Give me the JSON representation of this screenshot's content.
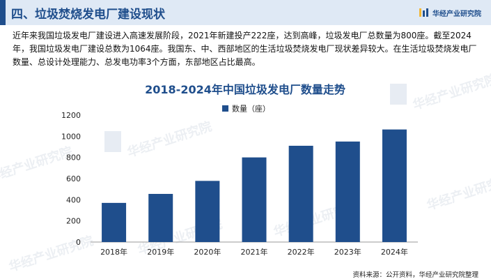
{
  "header": {
    "title": "四、垃圾焚烧发电厂建设现状",
    "brand": "华经产业研究院"
  },
  "intro": "近年来我国垃圾发电厂建设进入高速发展阶段，2021年新建投产222座，达到高峰，垃圾发电厂总数量为800座。截至2024年，我国垃圾发电厂建设总数为1064座。我国东、中、西部地区的生活垃圾焚烧发电厂现状差异较大。在生活垃圾焚烧发电厂数量、总设计处理能力、总发电功率3个方面，东部地区占比最高。",
  "watermark_text": "华经产业研究院",
  "colors": {
    "accent": "#1f4e8c",
    "bar": "#1f4e8c",
    "header_bg": "#dfe9f5"
  },
  "chart_data": {
    "type": "bar",
    "title": "2018-2024年中国垃圾发电厂数量走势",
    "categories": [
      "2018年",
      "2019年",
      "2020年",
      "2021年",
      "2022年",
      "2023年",
      "2024年"
    ],
    "series": [
      {
        "name": "数量（座）",
        "values": [
          370,
          455,
          578,
          800,
          910,
          950,
          1064
        ]
      }
    ],
    "ylim": [
      0,
      1200
    ],
    "yticks": [
      0,
      200,
      400,
      600,
      800,
      1000,
      1200
    ],
    "xlabel": "",
    "ylabel": "",
    "legend": "top-center",
    "grid": false
  },
  "source": "资料来源：公开资料，华经产业研究院整理"
}
